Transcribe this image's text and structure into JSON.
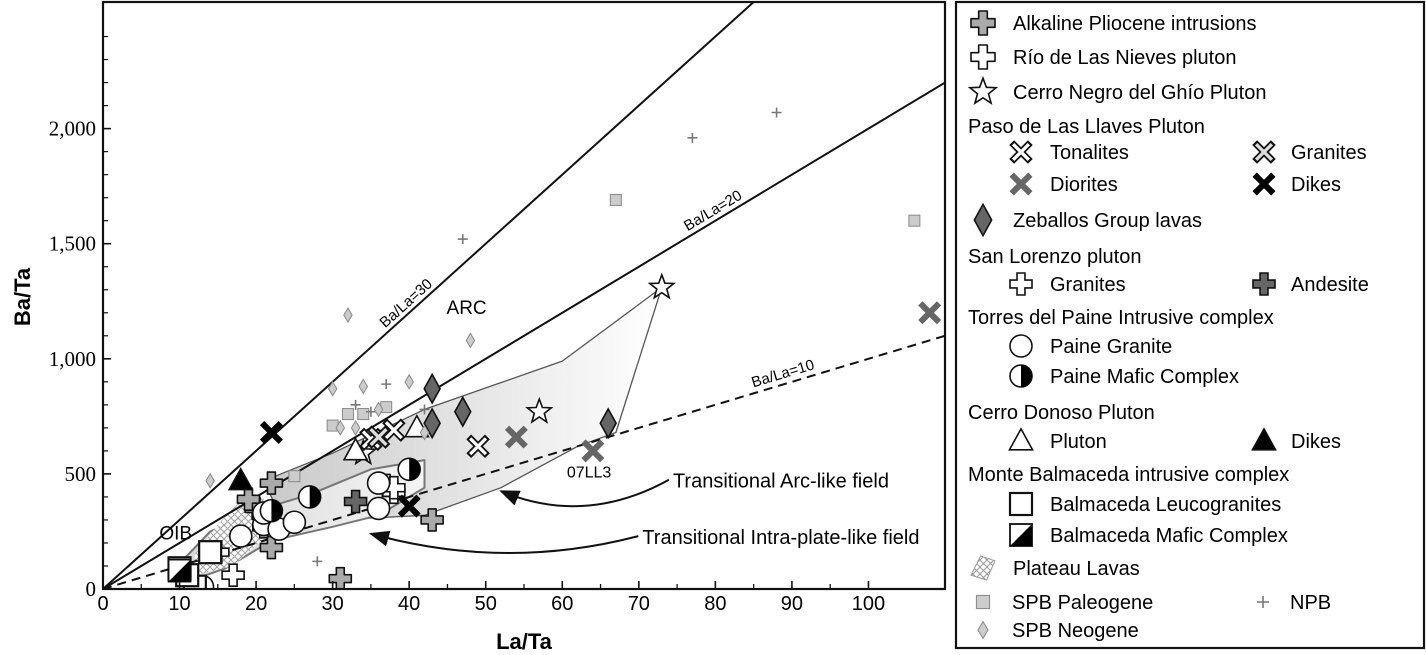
{
  "chart_data": {
    "type": "scatter",
    "title": "",
    "xlabel": "La/Ta",
    "ylabel": "Ba/Ta",
    "xlim": [
      0,
      110
    ],
    "ylim": [
      0,
      2550
    ],
    "x_ticks": [
      0,
      10,
      20,
      30,
      40,
      50,
      60,
      70,
      80,
      90,
      100
    ],
    "x_tick_labels": [
      "0",
      "10",
      "20",
      "30",
      "40",
      "50",
      "60",
      "70",
      "80",
      "90",
      "100"
    ],
    "y_ticks": [
      0,
      500,
      1000,
      1500,
      2000
    ],
    "y_tick_labels": [
      "0",
      "500",
      "1,000",
      "1,500",
      "2,000"
    ],
    "reference_lines": [
      {
        "label": "Ba/La=30",
        "ratio": 30,
        "style": "solid",
        "label_at": [
          40,
          1200
        ]
      },
      {
        "label": "Ba/La=20",
        "ratio": 20,
        "style": "solid",
        "label_at": [
          80,
          1600
        ]
      },
      {
        "label": "Ba/La=10",
        "ratio": 10,
        "style": "dashed",
        "label_at": [
          89,
          890
        ]
      }
    ],
    "annotations": [
      {
        "text": "ARC",
        "at": [
          47.5,
          1195
        ]
      },
      {
        "text": "OIB",
        "at": [
          9.5,
          215
        ]
      },
      {
        "text": "07LL3",
        "at": [
          63.5,
          485
        ]
      },
      {
        "text": "Transitional Arc-like field",
        "at": [
          87,
          440
        ],
        "arrow_to": [
          52,
          425
        ]
      },
      {
        "text": "Transitional Intra-plate-like field",
        "at": [
          83,
          195
        ],
        "arrow_to": [
          35,
          240
        ]
      }
    ],
    "fields": [
      {
        "name": "Transitional Arc-like field",
        "outline": [
          [
            21,
            470
          ],
          [
            30,
            590
          ],
          [
            42,
            780
          ],
          [
            60,
            990
          ],
          [
            73,
            1310
          ],
          [
            67,
            680
          ],
          [
            62,
            620
          ],
          [
            52,
            440
          ],
          [
            42,
            320
          ],
          [
            30,
            300
          ],
          [
            23,
            330
          ]
        ]
      },
      {
        "name": "Transitional Intra-plate-like field",
        "outline": [
          [
            10,
            110
          ],
          [
            14,
            250
          ],
          [
            20,
            340
          ],
          [
            27,
            410
          ],
          [
            35,
            520
          ],
          [
            42,
            560
          ],
          [
            42,
            440
          ],
          [
            36,
            320
          ],
          [
            30,
            270
          ],
          [
            22,
            210
          ],
          [
            16,
            90
          ],
          [
            10,
            20
          ]
        ]
      },
      {
        "name": "Plateau Lavas",
        "outline": [
          [
            12,
            150
          ],
          [
            15,
            280
          ],
          [
            19,
            420
          ],
          [
            21,
            400
          ],
          [
            21,
            220
          ],
          [
            17,
            100
          ],
          [
            12,
            60
          ]
        ]
      }
    ],
    "legend": {
      "items": [
        {
          "label": "Alkaline Pliocene intrusions",
          "marker": "cross-rounded",
          "fill": "#aaaaaa"
        },
        {
          "label": "Río de Las Nieves pluton",
          "marker": "cross-rounded",
          "fill": "#ffffff"
        },
        {
          "label": "Cerro Negro del Ghío Pluton",
          "marker": "star",
          "fill": "#ffffff"
        },
        {
          "label": "Paso de Las Llaves Pluton",
          "marker": "header"
        },
        {
          "label": "Tonalites",
          "marker": "x-open",
          "fill": "#ffffff"
        },
        {
          "label": "Granites",
          "marker": "x-open",
          "fill": "#dddddd"
        },
        {
          "label": "Diorites",
          "marker": "x",
          "fill": "#666666"
        },
        {
          "label": "Dikes",
          "marker": "x",
          "fill": "#000000"
        },
        {
          "label": "Zeballos Group lavas",
          "marker": "diamond",
          "fill": "#666666"
        },
        {
          "label": "San Lorenzo pluton",
          "marker": "header"
        },
        {
          "label": "Granites",
          "marker": "cross",
          "fill": "#ffffff"
        },
        {
          "label": "Andesite",
          "marker": "cross",
          "fill": "#666666"
        },
        {
          "label": "Torres del Paine Intrusive complex",
          "marker": "header"
        },
        {
          "label": "Paine Granite",
          "marker": "circle",
          "fill": "#ffffff"
        },
        {
          "label": "Paine Mafic Complex",
          "marker": "half-circle",
          "fill": "#000000"
        },
        {
          "label": "Cerro Donoso Pluton",
          "marker": "header"
        },
        {
          "label": "Pluton",
          "marker": "triangle",
          "fill": "#ffffff"
        },
        {
          "label": "Dikes",
          "marker": "triangle",
          "fill": "#000000"
        },
        {
          "label": "Monte Balmaceda intrusive complex",
          "marker": "header"
        },
        {
          "label": "Balmaceda Leucogranites",
          "marker": "square",
          "fill": "#ffffff"
        },
        {
          "label": "Balmaceda Mafic Complex",
          "marker": "half-square",
          "fill": "#000000"
        },
        {
          "label": "Plateau Lavas",
          "marker": "hatch"
        },
        {
          "label": "SPB Paleogene",
          "marker": "small-square",
          "fill": "#cccccc"
        },
        {
          "label": "NPB",
          "marker": "plus",
          "fill": "#777777"
        },
        {
          "label": "SPB Neogene",
          "marker": "small-diamond",
          "fill": "#cccccc"
        }
      ]
    },
    "series": [
      {
        "name": "Alkaline Pliocene intrusions",
        "marker": "cross-rounded",
        "fill": "#aaaaaa",
        "points": [
          [
            22,
            460
          ],
          [
            21,
            270
          ],
          [
            20,
            350
          ],
          [
            31,
            45
          ],
          [
            43,
            300
          ],
          [
            19,
            390
          ],
          [
            22,
            180
          ]
        ]
      },
      {
        "name": "Río de Las Nieves pluton",
        "marker": "cross-rounded",
        "fill": "#ffffff",
        "points": [
          [
            37,
            450
          ],
          [
            38,
            420
          ]
        ]
      },
      {
        "name": "Cerro Negro del Ghío Pluton",
        "marker": "star",
        "fill": "#ffffff",
        "points": [
          [
            73,
            1310
          ],
          [
            57,
            770
          ],
          [
            34,
            590
          ]
        ]
      },
      {
        "name": "Tonalites",
        "marker": "x-open",
        "fill": "#ffffff",
        "points": [
          [
            49,
            620
          ],
          [
            38,
            690
          ],
          [
            35,
            650
          ]
        ]
      },
      {
        "name": "Granites (Paso de Las Llaves)",
        "marker": "x-open",
        "fill": "#dddddd",
        "points": [
          [
            36,
            660
          ]
        ]
      },
      {
        "name": "Diorites",
        "marker": "x",
        "fill": "#666666",
        "points": [
          [
            54,
            660
          ],
          [
            108,
            1200
          ],
          [
            64,
            600
          ]
        ]
      },
      {
        "name": "Dikes (Paso de Las Llaves)",
        "marker": "x",
        "fill": "#000000",
        "points": [
          [
            22,
            680
          ],
          [
            40,
            360
          ]
        ]
      },
      {
        "name": "Zeballos Group lavas",
        "marker": "diamond",
        "fill": "#666666",
        "points": [
          [
            43,
            870
          ],
          [
            43,
            720
          ],
          [
            47,
            770
          ],
          [
            66,
            720
          ]
        ]
      },
      {
        "name": "San Lorenzo Granites",
        "marker": "cross",
        "fill": "#ffffff",
        "points": [
          [
            15,
            160
          ],
          [
            17,
            60
          ],
          [
            38,
            440
          ]
        ]
      },
      {
        "name": "San Lorenzo Andesite",
        "marker": "cross",
        "fill": "#666666",
        "points": [
          [
            33,
            380
          ]
        ]
      },
      {
        "name": "Paine Granite",
        "marker": "circle",
        "fill": "#ffffff",
        "points": [
          [
            21,
            280
          ],
          [
            23,
            260
          ],
          [
            25,
            290
          ],
          [
            18,
            230
          ],
          [
            36,
            350
          ],
          [
            36,
            460
          ],
          [
            13,
            10
          ],
          [
            21,
            330
          ]
        ]
      },
      {
        "name": "Paine Mafic Complex",
        "marker": "half-circle",
        "fill": "#000000",
        "points": [
          [
            27,
            400
          ],
          [
            40,
            520
          ],
          [
            22,
            340
          ]
        ]
      },
      {
        "name": "Cerro Donoso Pluton",
        "marker": "triangle",
        "fill": "#ffffff",
        "points": [
          [
            41,
            700
          ],
          [
            33,
            600
          ]
        ]
      },
      {
        "name": "Cerro Donoso Dikes",
        "marker": "triangle",
        "fill": "#000000",
        "points": [
          [
            18,
            470
          ]
        ]
      },
      {
        "name": "Balmaceda Leucogranites",
        "marker": "square",
        "fill": "#ffffff",
        "points": [
          [
            14,
            160
          ],
          [
            12,
            10
          ],
          [
            11,
            60
          ],
          [
            10,
            90
          ]
        ]
      },
      {
        "name": "Balmaceda Mafic Complex",
        "marker": "half-square",
        "fill": "#000000",
        "points": [
          [
            10,
            80
          ]
        ]
      },
      {
        "name": "SPB Paleogene",
        "marker": "small-square",
        "fill": "#cccccc",
        "points": [
          [
            67,
            1690
          ],
          [
            106,
            1600
          ],
          [
            25,
            490
          ],
          [
            32,
            760
          ],
          [
            37,
            790
          ],
          [
            34,
            760
          ],
          [
            30,
            710
          ]
        ]
      },
      {
        "name": "NPB",
        "marker": "plus",
        "fill": "#777777",
        "points": [
          [
            88,
            2070
          ],
          [
            77,
            1960
          ],
          [
            47,
            1520
          ],
          [
            37,
            890
          ],
          [
            33,
            800
          ],
          [
            35,
            770
          ],
          [
            28,
            120
          ],
          [
            42,
            780
          ]
        ]
      },
      {
        "name": "SPB Neogene",
        "marker": "small-diamond",
        "fill": "#cccccc",
        "points": [
          [
            32,
            1190
          ],
          [
            48,
            1080
          ],
          [
            30,
            870
          ],
          [
            40,
            900
          ],
          [
            34,
            880
          ],
          [
            31,
            700
          ],
          [
            36,
            780
          ],
          [
            14,
            470
          ],
          [
            33,
            700
          ],
          [
            42,
            680
          ]
        ]
      }
    ]
  }
}
